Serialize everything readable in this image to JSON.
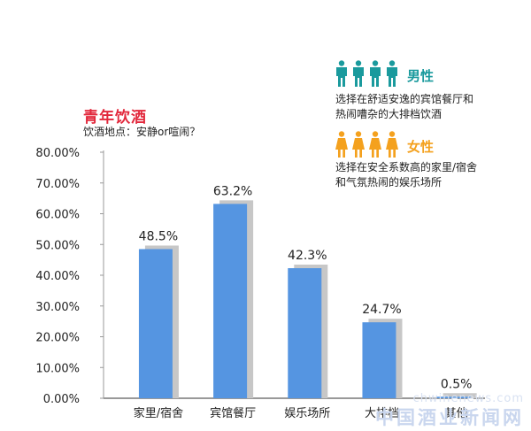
{
  "title": "青年饮酒",
  "subtitle": "饮酒地点：安静or喧闹？",
  "colors": {
    "title": "#e2283c",
    "bar": "#5595e1",
    "bar_shadow": "#c7c7c7",
    "male": "#1a9a9d",
    "female": "#f4a11e"
  },
  "legend": {
    "male": {
      "label": "男性",
      "icon": "male-person-icon",
      "count": 4,
      "description": "选择在舒适安逸的宾馆餐厅和\n热闹嘈杂的大排档饮酒"
    },
    "female": {
      "label": "女性",
      "icon": "female-person-icon",
      "count": 4,
      "description": "选择在安全系数高的家里/宿舍\n和气氛热闹的娱乐场所"
    }
  },
  "watermark": {
    "url": "chwinenews.com",
    "name": "中国酒业新闻网"
  },
  "chart_data": {
    "type": "bar",
    "categories": [
      "家里/宿舍",
      "宾馆餐厅",
      "娱乐场所",
      "大排档",
      "其他"
    ],
    "values": [
      48.5,
      63.2,
      42.3,
      24.7,
      0.5
    ],
    "data_labels": [
      "48.5%",
      "63.2%",
      "42.3%",
      "24.7%",
      "0.5%"
    ],
    "yticks": [
      "0.00%",
      "10.00%",
      "20.00%",
      "30.00%",
      "40.00%",
      "50.00%",
      "60.00%",
      "70.00%",
      "80.00%"
    ],
    "ylim": [
      0,
      80
    ],
    "grid": false,
    "legend_position": "top-right"
  }
}
